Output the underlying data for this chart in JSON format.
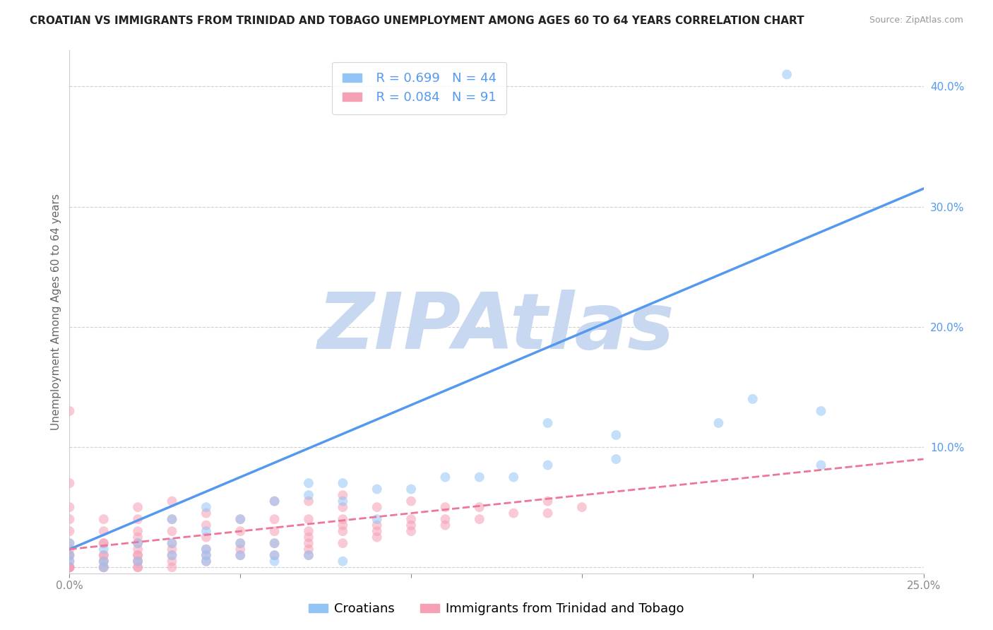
{
  "title": "CROATIAN VS IMMIGRANTS FROM TRINIDAD AND TOBAGO UNEMPLOYMENT AMONG AGES 60 TO 64 YEARS CORRELATION CHART",
  "source": "Source: ZipAtlas.com",
  "ylabel": "Unemployment Among Ages 60 to 64 years",
  "xlim": [
    0,
    0.25
  ],
  "ylim": [
    -0.005,
    0.43
  ],
  "ytick_positions": [
    0.0,
    0.1,
    0.2,
    0.3,
    0.4
  ],
  "ytick_labels": [
    "",
    "10.0%",
    "20.0%",
    "30.0%",
    "40.0%"
  ],
  "croatian_color": "#92c5f5",
  "trinidad_color": "#f5a0b5",
  "blue_line_color": "#5599ee",
  "pink_line_color": "#ee7799",
  "watermark_text": "ZIPAtlas",
  "watermark_color": "#c8d8f0",
  "legend_R_blue": "R = 0.699",
  "legend_N_blue": "N = 44",
  "legend_R_pink": "R = 0.084",
  "legend_N_pink": "N = 91",
  "legend_label_blue": "Croatians",
  "legend_label_pink": "Immigrants from Trinidad and Tobago",
  "croatian_x": [
    0.0,
    0.0,
    0.0,
    0.01,
    0.01,
    0.01,
    0.02,
    0.02,
    0.03,
    0.03,
    0.03,
    0.04,
    0.04,
    0.04,
    0.04,
    0.04,
    0.05,
    0.05,
    0.05,
    0.06,
    0.06,
    0.06,
    0.06,
    0.07,
    0.07,
    0.07,
    0.08,
    0.08,
    0.08,
    0.09,
    0.09,
    0.1,
    0.11,
    0.12,
    0.13,
    0.14,
    0.14,
    0.16,
    0.16,
    0.19,
    0.2,
    0.21,
    0.22,
    0.22
  ],
  "croatian_y": [
    0.005,
    0.01,
    0.02,
    0.0,
    0.005,
    0.015,
    0.005,
    0.02,
    0.01,
    0.02,
    0.04,
    0.005,
    0.01,
    0.015,
    0.03,
    0.05,
    0.01,
    0.02,
    0.04,
    0.005,
    0.01,
    0.02,
    0.055,
    0.01,
    0.06,
    0.07,
    0.005,
    0.055,
    0.07,
    0.04,
    0.065,
    0.065,
    0.075,
    0.075,
    0.075,
    0.085,
    0.12,
    0.09,
    0.11,
    0.12,
    0.14,
    0.41,
    0.085,
    0.13
  ],
  "trinidad_x": [
    0.0,
    0.0,
    0.0,
    0.0,
    0.0,
    0.0,
    0.0,
    0.0,
    0.0,
    0.0,
    0.0,
    0.0,
    0.0,
    0.0,
    0.0,
    0.01,
    0.01,
    0.01,
    0.01,
    0.01,
    0.01,
    0.01,
    0.01,
    0.01,
    0.01,
    0.02,
    0.02,
    0.02,
    0.02,
    0.02,
    0.02,
    0.02,
    0.02,
    0.02,
    0.02,
    0.02,
    0.02,
    0.03,
    0.03,
    0.03,
    0.03,
    0.03,
    0.03,
    0.03,
    0.03,
    0.04,
    0.04,
    0.04,
    0.04,
    0.04,
    0.04,
    0.05,
    0.05,
    0.05,
    0.05,
    0.05,
    0.06,
    0.06,
    0.06,
    0.06,
    0.06,
    0.07,
    0.07,
    0.07,
    0.07,
    0.07,
    0.07,
    0.07,
    0.08,
    0.08,
    0.08,
    0.08,
    0.08,
    0.08,
    0.09,
    0.09,
    0.09,
    0.09,
    0.1,
    0.1,
    0.1,
    0.1,
    0.11,
    0.11,
    0.11,
    0.12,
    0.12,
    0.13,
    0.14,
    0.14,
    0.15
  ],
  "trinidad_y": [
    0.0,
    0.0,
    0.0,
    0.0,
    0.0,
    0.005,
    0.01,
    0.01,
    0.015,
    0.02,
    0.03,
    0.04,
    0.05,
    0.07,
    0.13,
    0.0,
    0.0,
    0.005,
    0.005,
    0.01,
    0.01,
    0.02,
    0.02,
    0.03,
    0.04,
    0.0,
    0.0,
    0.005,
    0.005,
    0.01,
    0.01,
    0.015,
    0.02,
    0.025,
    0.03,
    0.04,
    0.05,
    0.0,
    0.005,
    0.01,
    0.015,
    0.02,
    0.03,
    0.04,
    0.055,
    0.005,
    0.01,
    0.015,
    0.025,
    0.035,
    0.045,
    0.01,
    0.015,
    0.02,
    0.03,
    0.04,
    0.01,
    0.02,
    0.03,
    0.04,
    0.055,
    0.01,
    0.015,
    0.02,
    0.025,
    0.03,
    0.04,
    0.055,
    0.02,
    0.03,
    0.035,
    0.04,
    0.05,
    0.06,
    0.025,
    0.03,
    0.035,
    0.05,
    0.03,
    0.035,
    0.04,
    0.055,
    0.035,
    0.04,
    0.05,
    0.04,
    0.05,
    0.045,
    0.045,
    0.055,
    0.05
  ],
  "blue_line_x": [
    0.0,
    0.25
  ],
  "blue_line_y": [
    0.015,
    0.315
  ],
  "pink_line_x": [
    0.0,
    0.25
  ],
  "pink_line_y": [
    0.015,
    0.09
  ],
  "background_color": "#ffffff",
  "grid_color": "#d0d0d0",
  "title_fontsize": 11,
  "axis_fontsize": 11,
  "tick_fontsize": 11,
  "legend_fontsize": 13,
  "dot_size": 100,
  "dot_alpha": 0.55
}
